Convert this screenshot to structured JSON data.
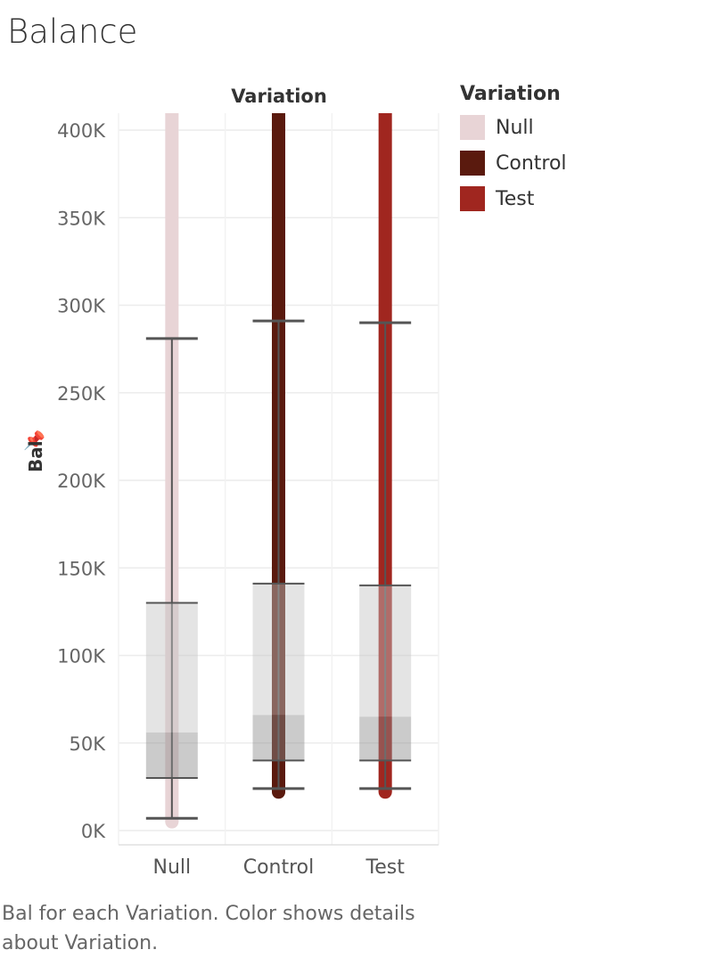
{
  "title": "Balance",
  "caption": "Bal for each Variation.  Color shows details about Variation.",
  "legend": {
    "title": "Variation",
    "items": [
      {
        "label": "Null",
        "color": "#e8d4d6"
      },
      {
        "label": "Control",
        "color": "#5a1a0e"
      },
      {
        "label": "Test",
        "color": "#a0261f"
      }
    ]
  },
  "y_axis_label": "Bal",
  "pin_icon": "pin-icon",
  "chart_data": {
    "type": "box",
    "title": "Balance",
    "column_header": "Variation",
    "ylabel": "Bal",
    "ylim": [
      -8000,
      400000
    ],
    "yticks": [
      0,
      50000,
      100000,
      150000,
      200000,
      250000,
      300000,
      350000,
      400000
    ],
    "ytick_labels": [
      "0K",
      "50K",
      "100K",
      "150K",
      "200K",
      "250K",
      "300K",
      "350K",
      "400K"
    ],
    "categories": [
      "Null",
      "Control",
      "Test"
    ],
    "colors": [
      "#e8d4d6",
      "#5a1a0e",
      "#a0261f"
    ],
    "data_range": [
      {
        "min": 5000,
        "max": 400000
      },
      {
        "min": 22000,
        "max": 400000
      },
      {
        "min": 22000,
        "max": 400000
      }
    ],
    "boxes": [
      {
        "lower_whisker": 7000,
        "q1": 30000,
        "median": 56000,
        "q3": 130000,
        "upper_whisker": 281000
      },
      {
        "lower_whisker": 24000,
        "q1": 40000,
        "median": 66000,
        "q3": 141000,
        "upper_whisker": 291000
      },
      {
        "lower_whisker": 24000,
        "q1": 40000,
        "median": 65000,
        "q3": 140000,
        "upper_whisker": 290000
      }
    ],
    "grid": true
  }
}
